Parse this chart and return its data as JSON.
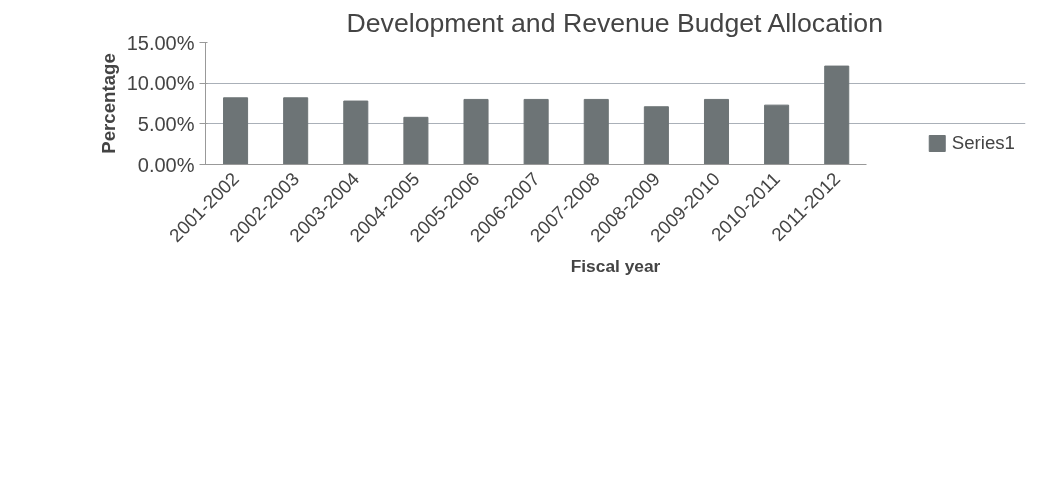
{
  "chart_data": {
    "type": "bar",
    "title": "Development and Revenue Budget Allocation",
    "xlabel": "Fiscal year",
    "ylabel": "Percentage",
    "categories": [
      "2001-2002",
      "2002-2003",
      "2003-2004",
      "2004-2005",
      "2005-2006",
      "2006-2007",
      "2007-2008",
      "2008-2009",
      "2009-2010",
      "2010-2011",
      "2011-2012"
    ],
    "series": [
      {
        "name": "Series1",
        "color": "#6d7476",
        "values": [
          8.2,
          8.2,
          7.8,
          5.8,
          8.0,
          8.0,
          8.0,
          7.1,
          8.0,
          7.3,
          12.1
        ]
      }
    ],
    "ylim": [
      0,
      15
    ],
    "yticks": [
      {
        "value": 0,
        "label": "0.00%"
      },
      {
        "value": 5,
        "label": "5.00%"
      },
      {
        "value": 10,
        "label": "10.00%"
      },
      {
        "value": 15,
        "label": "15.00%"
      }
    ],
    "grid": "y",
    "legend": "right"
  }
}
